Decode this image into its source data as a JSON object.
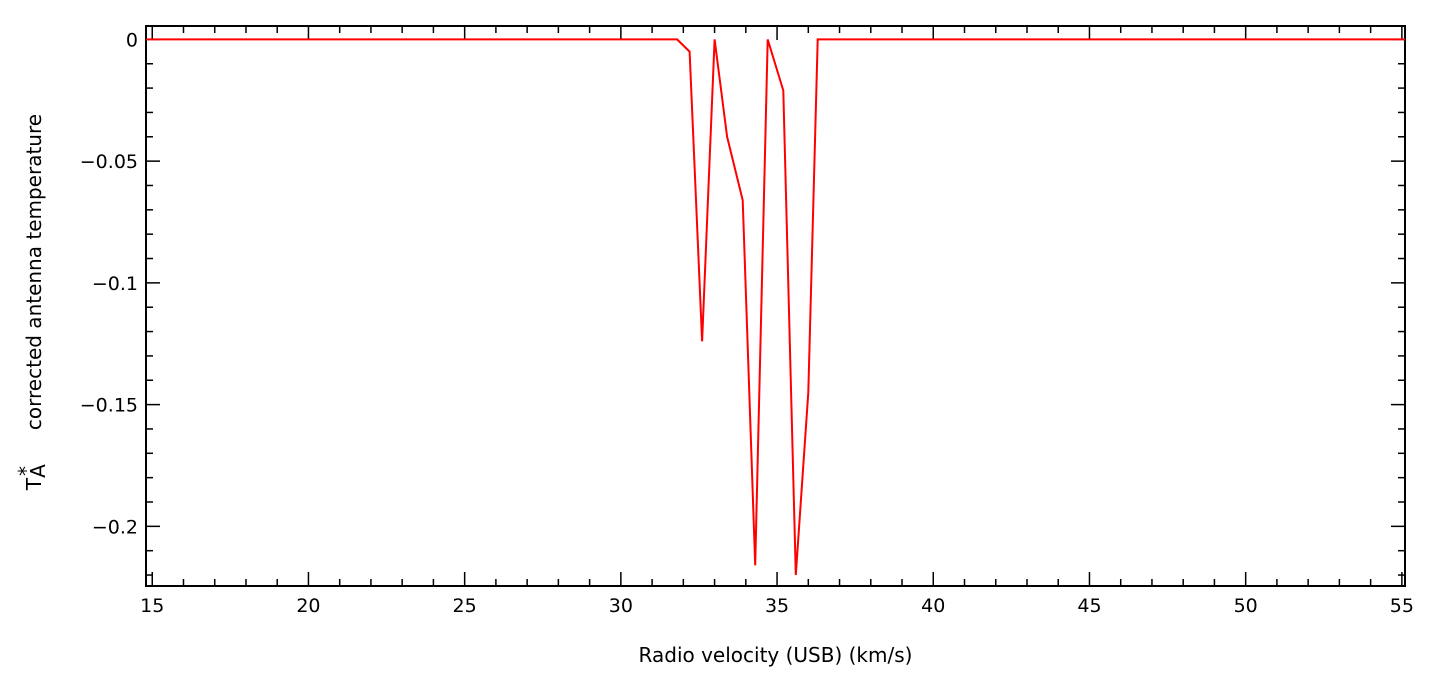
{
  "chart_data": {
    "type": "line",
    "title": "",
    "xlabel": "Radio velocity (USB) (km/s)",
    "ylabel": "corrected antenna temperature",
    "ylabel_symbol": "T",
    "ylabel_symbol_sup": "*",
    "ylabel_symbol_sub": "A",
    "xlim": [
      14.8,
      55.1
    ],
    "ylim": [
      -0.2245,
      0.0055
    ],
    "xticks": [
      15,
      20,
      25,
      30,
      35,
      40,
      45,
      50,
      55
    ],
    "xtick_labels": [
      "15",
      "20",
      "25",
      "30",
      "35",
      "40",
      "45",
      "50",
      "55"
    ],
    "yticks": [
      0,
      -0.05,
      -0.1,
      -0.15,
      -0.2
    ],
    "ytick_labels": [
      "0",
      "−0.05",
      "−0.1",
      "−0.15",
      "−0.2"
    ],
    "grid": false,
    "series": [
      {
        "color": "#ff0000",
        "x": [
          14.8,
          31.8,
          32.2,
          32.6,
          33.0,
          33.4,
          33.9,
          34.3,
          34.7,
          35.2,
          35.6,
          36.0,
          36.3,
          55.1
        ],
        "y": [
          0,
          0,
          -0.005,
          -0.124,
          0,
          -0.04,
          -0.066,
          -0.216,
          0,
          -0.021,
          -0.22,
          -0.145,
          0,
          0
        ]
      }
    ]
  }
}
